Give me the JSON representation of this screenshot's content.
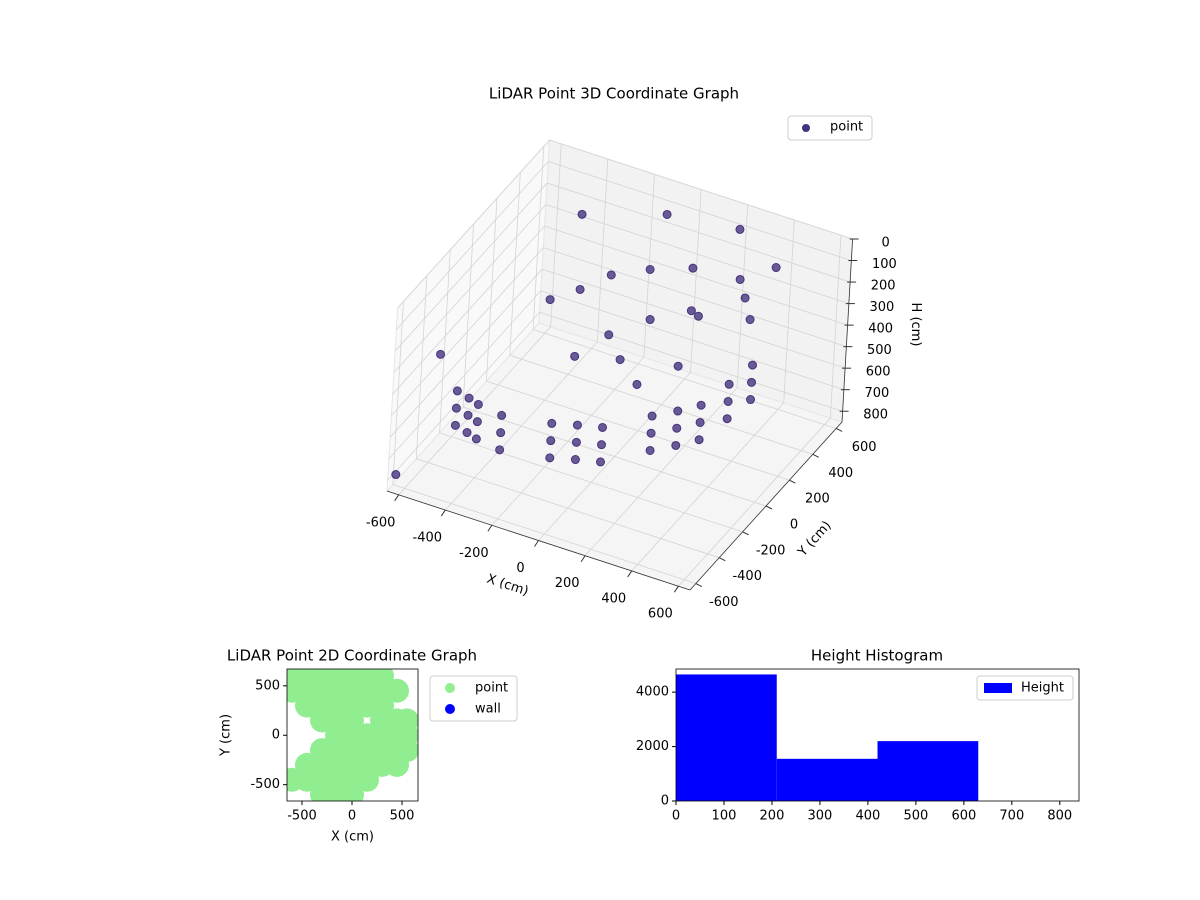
{
  "chart_data": [
    {
      "type": "scatter3d",
      "title": "LiDAR Point 3D Coordinate Graph",
      "xlabel": "X (cm)",
      "ylabel": "Y (cm)",
      "zlabel": "H (cm)",
      "xlim": [
        -650,
        650
      ],
      "ylim": [
        -650,
        650
      ],
      "zlim": [
        850,
        0
      ],
      "xticks": [
        -600,
        -400,
        -200,
        0,
        200,
        400,
        600
      ],
      "yticks": [
        -600,
        -400,
        -200,
        0,
        200,
        400,
        600
      ],
      "zticks": [
        0,
        100,
        200,
        300,
        400,
        500,
        600,
        700,
        800
      ],
      "grid": true,
      "legend": "upper right",
      "series": [
        {
          "name": "point",
          "color": "#46337e",
          "x": [
            -590,
            -590,
            -590,
            -530,
            -530,
            -530,
            -480,
            -480,
            -480,
            -370,
            -370,
            -370,
            -180,
            -180,
            -180,
            -90,
            -90,
            -90,
            0,
            0,
            0,
            130,
            130,
            130,
            200,
            200,
            200,
            260,
            260,
            260,
            290,
            290,
            290,
            310,
            310,
            310,
            -222,
            -50,
            278,
            431,
            100,
            -291,
            100,
            350,
            -150,
            250,
            -350,
            -68,
            218,
            452,
            -550,
            -640,
            0,
            100,
            -100,
            200,
            -100,
            150
          ],
          "y": [
            -190,
            -190,
            -190,
            -210,
            -210,
            -210,
            -230,
            -230,
            -230,
            -250,
            -250,
            -250,
            -200,
            -200,
            -200,
            -160,
            -160,
            -160,
            -125,
            -125,
            -125,
            40,
            40,
            40,
            120,
            120,
            120,
            200,
            200,
            200,
            380,
            380,
            380,
            540,
            540,
            540,
            79,
            335,
            451,
            231,
            36,
            -40,
            400,
            350,
            200,
            150,
            335,
            500,
            553,
            396,
            -450,
            -600,
            0,
            -50,
            100,
            100,
            -200,
            300
          ],
          "z": [
            800,
            720,
            640,
            800,
            720,
            640,
            800,
            720,
            640,
            800,
            720,
            640,
            800,
            720,
            640,
            800,
            720,
            640,
            800,
            720,
            640,
            800,
            720,
            640,
            800,
            720,
            640,
            800,
            720,
            640,
            800,
            720,
            640,
            800,
            720,
            640,
            200,
            200,
            200,
            200,
            200,
            200,
            180,
            200,
            180,
            200,
            50,
            50,
            50,
            50,
            300,
            800,
            400,
            450,
            380,
            420,
            300,
            300
          ]
        }
      ]
    },
    {
      "type": "scatter",
      "title": "LiDAR Point 2D Coordinate Graph",
      "xlabel": "X (cm)",
      "ylabel": "Y (cm)",
      "xlim": [
        -650,
        660
      ],
      "ylim": [
        -665,
        670
      ],
      "xticks": [
        -500,
        0,
        500
      ],
      "yticks": [
        -500,
        0,
        500
      ],
      "legend": "outside right",
      "series": [
        {
          "name": "point",
          "color": "#90ee90",
          "x": [
            -600,
            -450,
            -300,
            -150,
            0,
            150,
            300,
            -600,
            -450,
            -300,
            -150,
            0,
            150,
            300,
            450,
            -450,
            -300,
            -150,
            0,
            150,
            300,
            -300,
            -150,
            0,
            300,
            450,
            550,
            -150,
            0,
            150,
            300,
            450,
            550,
            -300,
            -150,
            0,
            150,
            300,
            450,
            550,
            -450,
            -300,
            -150,
            0,
            150,
            300,
            450,
            -600,
            -450,
            -300,
            -150,
            0,
            150,
            -300,
            -150,
            0
          ],
          "y": [
            600,
            600,
            600,
            600,
            600,
            600,
            600,
            450,
            450,
            450,
            450,
            450,
            450,
            450,
            450,
            300,
            300,
            300,
            300,
            300,
            300,
            150,
            150,
            150,
            150,
            150,
            150,
            0,
            0,
            0,
            0,
            0,
            0,
            -150,
            -150,
            -150,
            -150,
            -150,
            -150,
            -150,
            -300,
            -300,
            -300,
            -300,
            -300,
            -300,
            -300,
            -450,
            -450,
            -450,
            -450,
            -450,
            -450,
            -600,
            -600,
            -600
          ]
        },
        {
          "name": "wall",
          "color": "#0000ff",
          "x": [],
          "y": []
        }
      ]
    },
    {
      "type": "histogram",
      "title": "Height Histogram",
      "bins": [
        0,
        210,
        420,
        630,
        840
      ],
      "xlim": [
        0,
        840
      ],
      "ylim": [
        0,
        4850
      ],
      "xticks": [
        0,
        100,
        200,
        300,
        400,
        500,
        600,
        700,
        800
      ],
      "yticks": [
        0,
        2000,
        4000
      ],
      "legend": "upper right",
      "series": [
        {
          "name": "Height",
          "color": "#0000ff",
          "values": [
            4650,
            1550,
            2200,
            0
          ]
        }
      ]
    }
  ]
}
